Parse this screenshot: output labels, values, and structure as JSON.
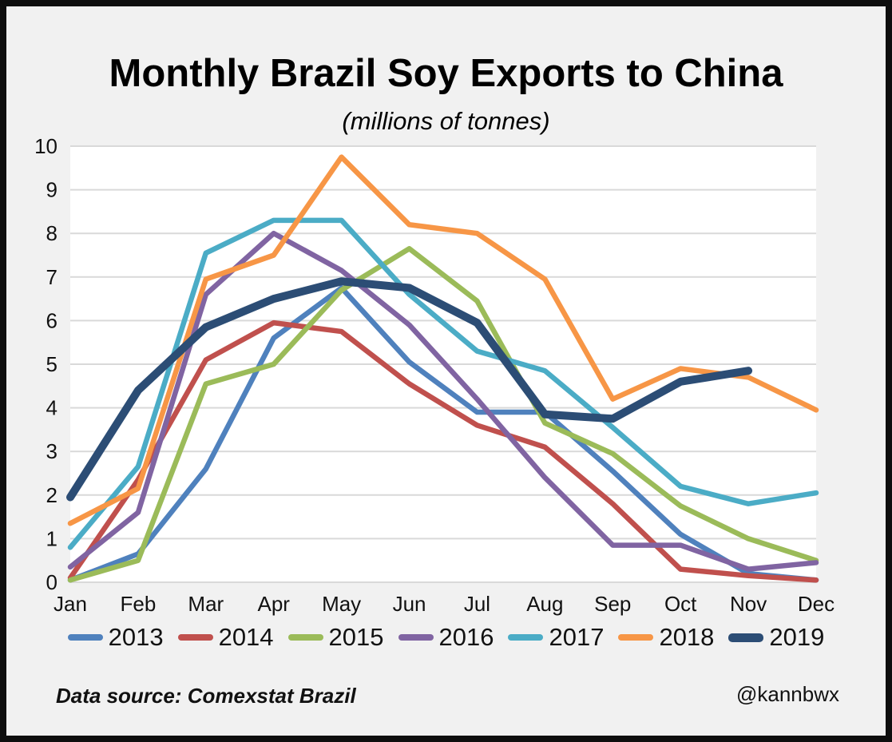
{
  "header": {
    "title": "Monthly Brazil Soy Exports to China",
    "subtitle": "(millions of tonnes)"
  },
  "footer": {
    "source_note": "Data source: Comexstat Brazil",
    "watermark": "@kannbwx"
  },
  "chart_data": {
    "type": "line",
    "title": "Monthly Brazil Soy Exports to China",
    "subtitle": "(millions of tonnes)",
    "xlabel": "",
    "ylabel": "",
    "categories": [
      "Jan",
      "Feb",
      "Mar",
      "Apr",
      "May",
      "Jun",
      "Jul",
      "Aug",
      "Sep",
      "Oct",
      "Nov",
      "Dec"
    ],
    "ylim": [
      0,
      10
    ],
    "y_ticks": [
      0,
      1,
      2,
      3,
      4,
      5,
      6,
      7,
      8,
      9,
      10
    ],
    "grid": true,
    "legend_position": "bottom",
    "colors": {
      "background": "#f1f1f1",
      "plot_background": "#ffffff",
      "gridline": "#d9d9d9",
      "tick_text": "#111111"
    },
    "series": [
      {
        "name": "2013",
        "color": "#4F81BD",
        "thick": false,
        "values": [
          0.05,
          0.65,
          2.6,
          5.6,
          6.75,
          5.05,
          3.9,
          3.9,
          2.55,
          1.1,
          0.2,
          0.05
        ]
      },
      {
        "name": "2014",
        "color": "#C0504D",
        "thick": false,
        "values": [
          0.1,
          2.35,
          5.1,
          5.95,
          5.75,
          4.55,
          3.6,
          3.1,
          1.8,
          0.3,
          0.15,
          0.05
        ]
      },
      {
        "name": "2015",
        "color": "#9BBB59",
        "thick": false,
        "values": [
          0.05,
          0.5,
          4.55,
          5.0,
          6.7,
          7.65,
          6.45,
          3.65,
          2.95,
          1.75,
          1.0,
          0.5
        ]
      },
      {
        "name": "2016",
        "color": "#8064A2",
        "thick": false,
        "values": [
          0.35,
          1.6,
          6.6,
          8.0,
          7.15,
          5.9,
          4.2,
          2.4,
          0.85,
          0.85,
          0.3,
          0.45
        ]
      },
      {
        "name": "2017",
        "color": "#4BACC6",
        "thick": false,
        "values": [
          0.8,
          2.65,
          7.55,
          8.3,
          8.3,
          6.6,
          5.3,
          4.85,
          3.55,
          2.2,
          1.8,
          2.05
        ]
      },
      {
        "name": "2018",
        "color": "#F79646",
        "thick": false,
        "values": [
          1.35,
          2.15,
          6.95,
          7.5,
          9.75,
          8.2,
          8.0,
          6.95,
          4.2,
          4.9,
          4.7,
          3.95
        ]
      },
      {
        "name": "2019",
        "color": "#2C4D75",
        "thick": true,
        "values": [
          1.95,
          4.4,
          5.85,
          6.5,
          6.9,
          6.75,
          5.95,
          3.85,
          3.75,
          4.6,
          4.85,
          null
        ]
      }
    ]
  }
}
